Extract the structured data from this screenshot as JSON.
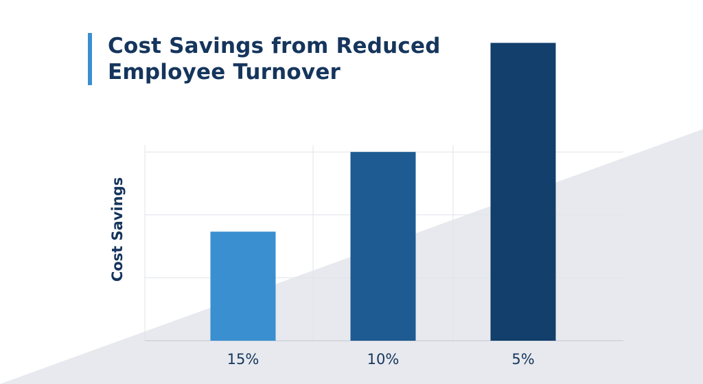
{
  "chart_data": {
    "type": "bar",
    "title": "Cost Savings from Reduced Employee Turnover",
    "xlabel": "",
    "ylabel": "Cost Savings",
    "categories": [
      "15%",
      "10%",
      "5%"
    ],
    "values": [
      52,
      90,
      142
    ],
    "ylim": [
      0,
      150
    ],
    "gridlines": [
      30,
      60,
      90
    ],
    "grid": true,
    "legend": "none",
    "colors": [
      "#3a8fd0",
      "#1d5b92",
      "#123f6b"
    ]
  },
  "theme": {
    "title_color": "#15355c",
    "accent_color": "#3a8fd0",
    "grid_color": "#dfe3e8",
    "background_wedge_color": "#e7e9ee"
  }
}
